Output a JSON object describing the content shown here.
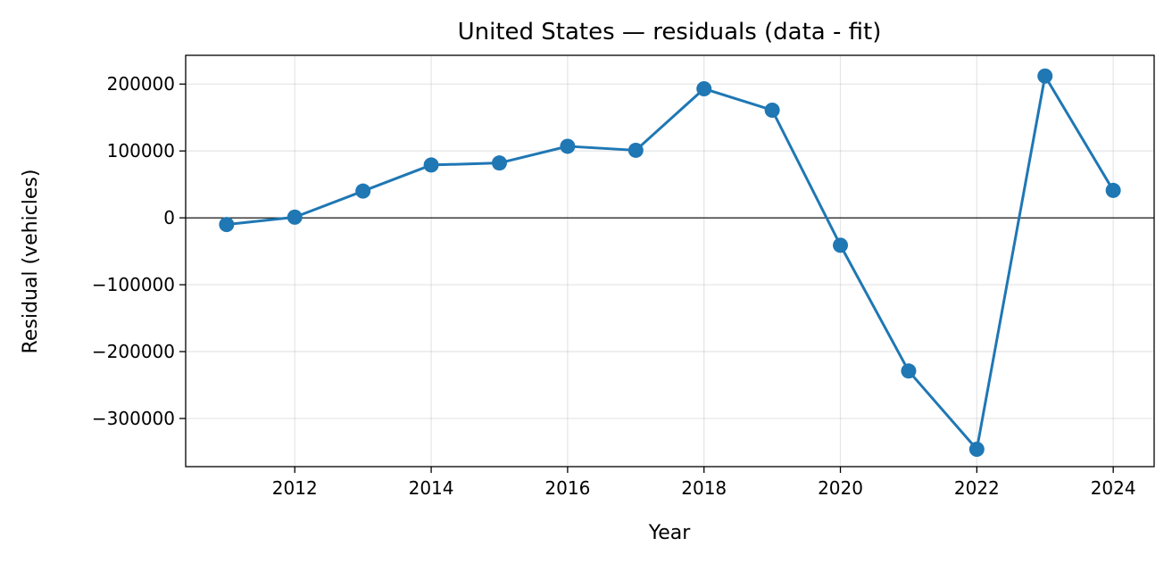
{
  "chart_data": {
    "type": "line",
    "title": "United States — residuals (data - fit)",
    "xlabel": "Year",
    "ylabel": "Residual (vehicles)",
    "xlim": [
      2010.4,
      2024.6
    ],
    "ylim": [
      -372000,
      243000
    ],
    "xticks": [
      2012,
      2014,
      2016,
      2018,
      2020,
      2022,
      2024
    ],
    "yticks": [
      -300000,
      -200000,
      -100000,
      0,
      100000,
      200000
    ],
    "ytick_labels": [
      "−300000",
      "−200000",
      "−100000",
      "0",
      "100000",
      "200000"
    ],
    "grid": true,
    "zero_line": true,
    "series": [
      {
        "color": "#1f77b4",
        "marker": "circle",
        "x": [
          2011,
          2012,
          2013,
          2014,
          2015,
          2016,
          2017,
          2018,
          2019,
          2020,
          2021,
          2022,
          2023,
          2024
        ],
        "values": [
          -10000,
          1000,
          40000,
          79000,
          82000,
          107000,
          101000,
          193000,
          161000,
          -41000,
          -229000,
          -346000,
          212000,
          41000
        ]
      }
    ]
  }
}
